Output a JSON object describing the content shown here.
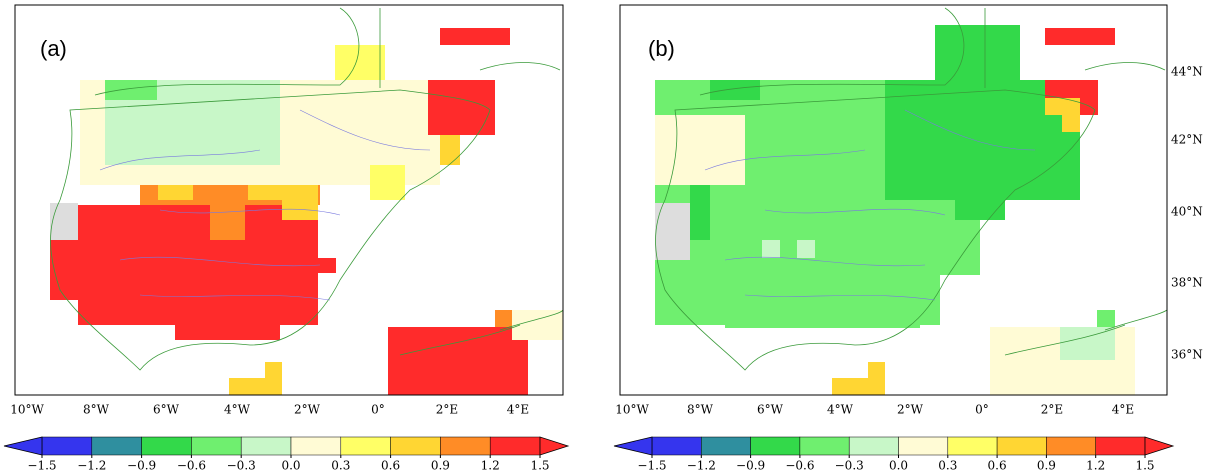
{
  "panels": [
    {
      "label": "(a)"
    },
    {
      "label": "(b)"
    }
  ],
  "map": {
    "lon_labels": [
      "10°W",
      "8°W",
      "6°W",
      "4°W",
      "2°W",
      "0°",
      "2°E",
      "4°E"
    ],
    "lat_labels": [
      "44°N",
      "42°N",
      "40°N",
      "38°N",
      "36°N"
    ]
  },
  "colorbar": {
    "ticks": [
      {
        "value": -1.5,
        "label": "−1.5"
      },
      {
        "value": -1.2,
        "label": "−1.2"
      },
      {
        "value": -0.9,
        "label": "−0.9"
      },
      {
        "value": -0.6,
        "label": "−0.6"
      },
      {
        "value": -0.3,
        "label": "−0.3"
      },
      {
        "value": 0,
        "label": "0.0"
      },
      0.3,
      0.6,
      0.9,
      1.2,
      1.5
    ],
    "colors": [
      "#3535ee",
      "#2f8f9f",
      "#33d94a",
      "#6fef6f",
      "#c8f7c8",
      "#fffbd5",
      "#ffff66",
      "#ffd633",
      "#ff8c26",
      "#ff2b2b"
    ]
  }
}
